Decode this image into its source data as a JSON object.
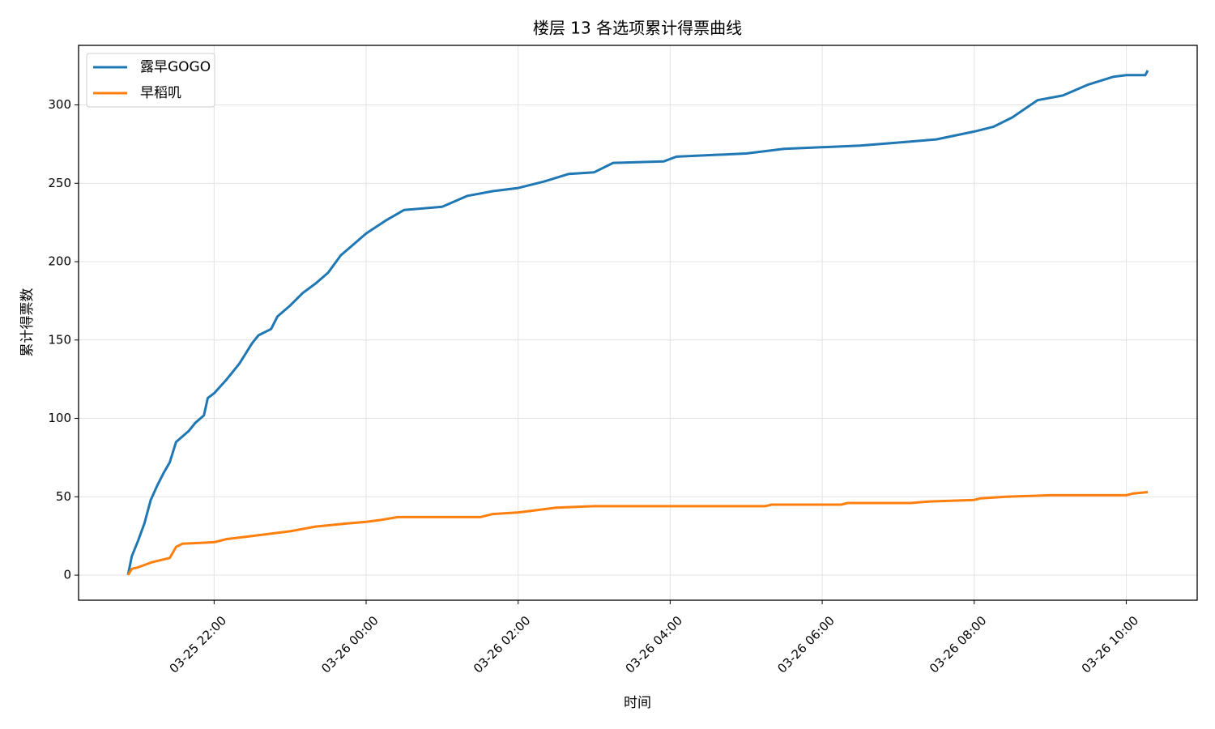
{
  "chart_data": {
    "type": "line",
    "title": "楼层 13 各选项累计得票曲线",
    "x_label": "时间",
    "y_label": "累计得票数",
    "xlim": [
      "03-25 20:13",
      "03-26 10:56"
    ],
    "xticks": [
      "03-25 22:00",
      "03-26 00:00",
      "03-26 02:00",
      "03-26 04:00",
      "03-26 06:00",
      "03-26 08:00",
      "03-26 10:00"
    ],
    "ylim": [
      -16,
      338
    ],
    "yticks": [
      0,
      50,
      100,
      150,
      200,
      250,
      300
    ],
    "grid": true,
    "legend": "upper-left",
    "series": [
      {
        "name": "露早GOGO",
        "color": "#1f77b4",
        "x": [
          "03-25 20:52",
          "03-25 20:55",
          "03-25 21:00",
          "03-25 21:05",
          "03-25 21:10",
          "03-25 21:15",
          "03-25 21:20",
          "03-25 21:25",
          "03-25 21:30",
          "03-25 21:40",
          "03-25 21:45",
          "03-25 21:52",
          "03-25 21:55",
          "03-25 22:00",
          "03-25 22:10",
          "03-25 22:20",
          "03-25 22:30",
          "03-25 22:35",
          "03-25 22:45",
          "03-25 22:50",
          "03-25 23:00",
          "03-25 23:10",
          "03-25 23:20",
          "03-25 23:30",
          "03-25 23:40",
          "03-25 23:50",
          "03-26 00:00",
          "03-26 00:15",
          "03-26 00:30",
          "03-26 01:00",
          "03-26 01:20",
          "03-26 01:40",
          "03-26 02:00",
          "03-26 02:20",
          "03-26 02:40",
          "03-26 03:00",
          "03-26 03:15",
          "03-26 03:55",
          "03-26 04:05",
          "03-26 05:00",
          "03-26 05:30",
          "03-26 06:30",
          "03-26 07:00",
          "03-26 07:30",
          "03-26 08:00",
          "03-26 08:15",
          "03-26 08:30",
          "03-26 08:50",
          "03-26 09:10",
          "03-26 09:30",
          "03-26 09:50",
          "03-26 10:00",
          "03-26 10:15",
          "03-26 10:17"
        ],
        "values": [
          0,
          12,
          22,
          33,
          48,
          57,
          65,
          72,
          85,
          92,
          97,
          102,
          113,
          116,
          125,
          135,
          148,
          153,
          157,
          165,
          172,
          180,
          186,
          193,
          204,
          211,
          218,
          226,
          233,
          235,
          242,
          245,
          247,
          251,
          256,
          257,
          263,
          264,
          267,
          269,
          272,
          274,
          276,
          278,
          283,
          286,
          292,
          303,
          306,
          313,
          318,
          319,
          319,
          322
        ]
      },
      {
        "name": "早稻叽",
        "color": "#ff7f0e",
        "x": [
          "03-25 20:52",
          "03-25 20:55",
          "03-25 21:00",
          "03-25 21:10",
          "03-25 21:15",
          "03-25 21:25",
          "03-25 21:30",
          "03-25 21:35",
          "03-25 22:00",
          "03-25 22:10",
          "03-25 22:30",
          "03-25 23:00",
          "03-25 23:20",
          "03-25 23:45",
          "03-26 00:00",
          "03-26 00:10",
          "03-26 00:25",
          "03-26 01:30",
          "03-26 01:40",
          "03-26 02:00",
          "03-26 02:10",
          "03-26 02:30",
          "03-26 03:00",
          "03-26 05:15",
          "03-26 05:20",
          "03-26 06:15",
          "03-26 06:20",
          "03-26 07:10",
          "03-26 07:25",
          "03-26 08:00",
          "03-26 08:05",
          "03-26 08:25",
          "03-26 09:00",
          "03-26 10:00",
          "03-26 10:05",
          "03-26 10:17"
        ],
        "values": [
          0,
          4,
          5,
          8,
          9,
          11,
          18,
          20,
          21,
          23,
          25,
          28,
          31,
          33,
          34,
          35,
          37,
          37,
          39,
          40,
          41,
          43,
          44,
          44,
          45,
          45,
          46,
          46,
          47,
          48,
          49,
          50,
          51,
          51,
          52,
          53
        ]
      }
    ]
  }
}
